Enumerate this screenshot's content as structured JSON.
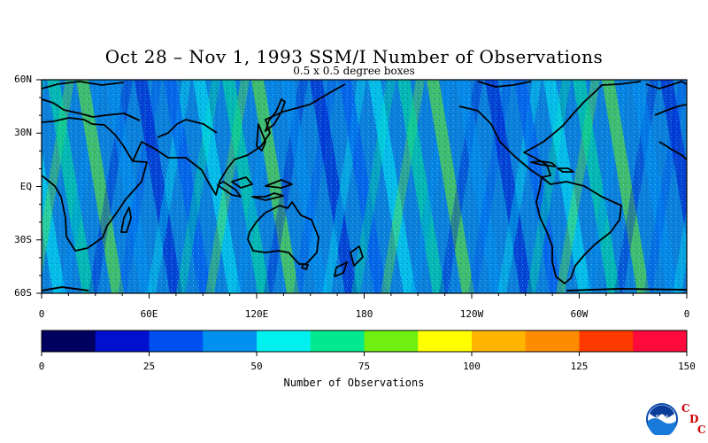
{
  "title": "Oct 28 – Nov 1, 1993 SSM/I Number of Observations",
  "subtitle": "0.5 x 0.5 degree boxes",
  "map": {
    "lat_labels": [
      "60N",
      "30N",
      "EQ",
      "30S",
      "60S"
    ],
    "lon_labels": [
      "0",
      "60E",
      "120E",
      "180",
      "120W",
      "60W",
      "0"
    ],
    "lat_range": [
      -60,
      60
    ],
    "lon_range": [
      0,
      360
    ],
    "background_color": "#0c7fd9"
  },
  "colorbar": {
    "title": "Number of Observations",
    "tick_labels": [
      "0",
      "25",
      "50",
      "75",
      "100",
      "125",
      "150"
    ],
    "colors": [
      "#000060",
      "#0010cc",
      "#0050f0",
      "#0090f0",
      "#00f0f0",
      "#00e890",
      "#70f010",
      "#ffff00",
      "#ffb400",
      "#ff8c00",
      "#ff3a00",
      "#ff0a3c"
    ]
  },
  "logo": {
    "noaa_text": "NOAA",
    "cdc_letters": [
      "C",
      "D",
      "C"
    ]
  }
}
